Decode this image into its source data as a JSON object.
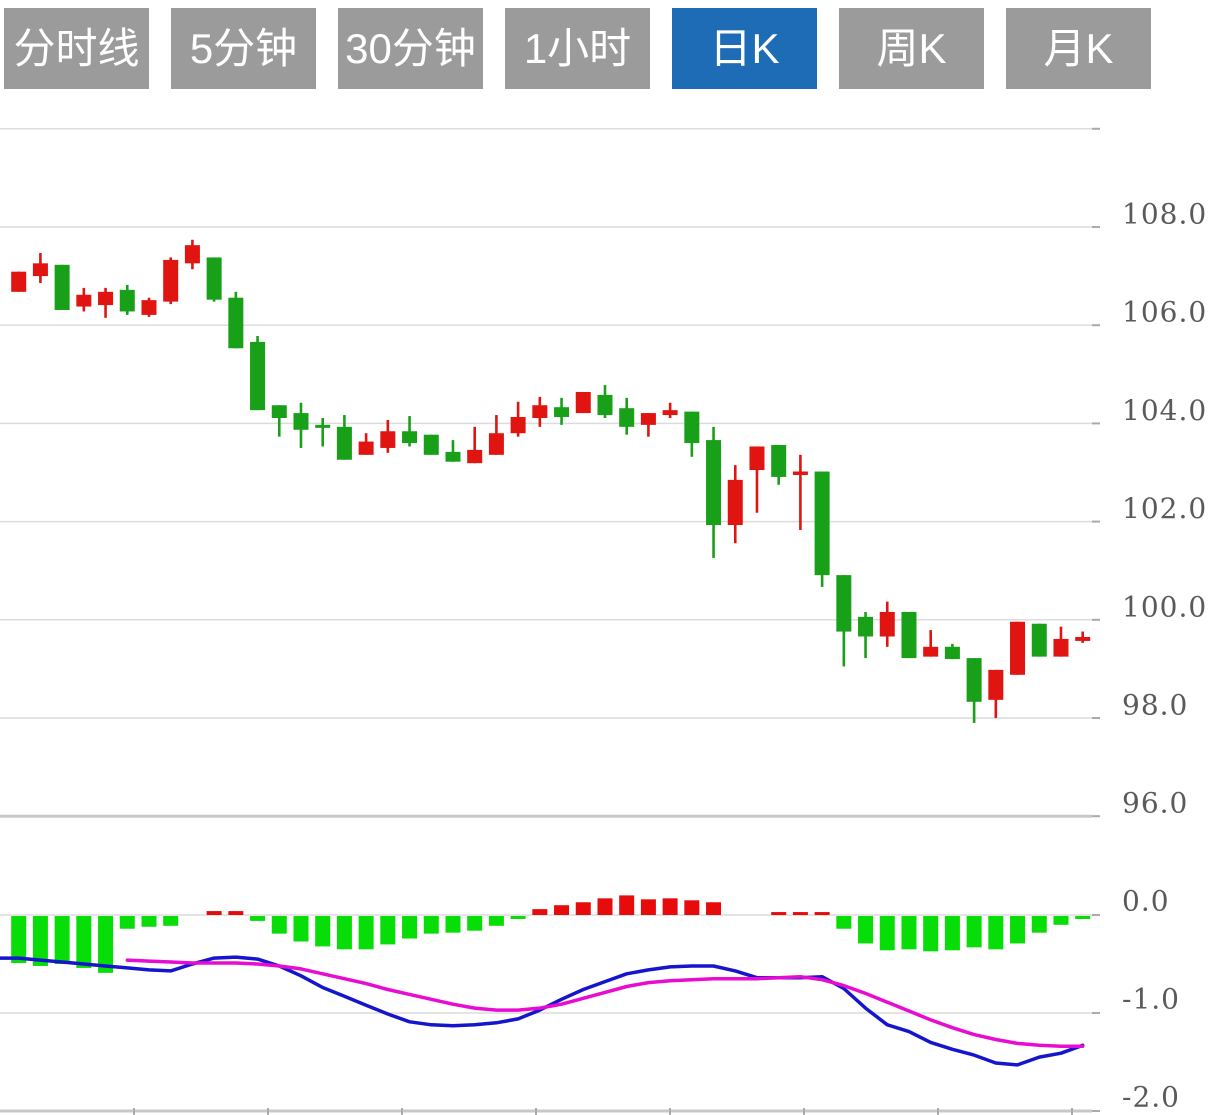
{
  "toolbar": {
    "tabs": [
      {
        "label": "分时线",
        "active": false
      },
      {
        "label": "5分钟",
        "active": false
      },
      {
        "label": "30分钟",
        "active": false
      },
      {
        "label": "1小时",
        "active": false
      },
      {
        "label": "日K",
        "active": true
      },
      {
        "label": "周K",
        "active": false
      },
      {
        "label": "月K",
        "active": false
      }
    ]
  },
  "colors": {
    "up": "#e01410",
    "down": "#18a018",
    "hist_up": "#e60c0c",
    "hist_down": "#07dd07",
    "dif_line": "#1515cd",
    "dea_line": "#e80cd2",
    "grid": "#dcdcdc",
    "grid_heavy": "#c8c8c8",
    "tick": "#aaaaaa",
    "label": "#5a5a5a",
    "tab_bg": "#9b9b9b",
    "tab_active": "#1e6cb5",
    "tab_text": "#ffffff"
  },
  "chart_data": {
    "type": "candlestick+macd",
    "title": "",
    "legend": "none",
    "grid": true,
    "price_axis": {
      "side": "right",
      "gridline_values": [
        110,
        108,
        106,
        104,
        102,
        100,
        98,
        96
      ],
      "heavy_value": 96,
      "labels": [
        {
          "value": 108,
          "text": "108.0"
        },
        {
          "value": 106,
          "text": "106.0"
        },
        {
          "value": 104,
          "text": "104.0"
        },
        {
          "value": 102,
          "text": "102.0"
        },
        {
          "value": 100,
          "text": "100.0"
        },
        {
          "value": 98,
          "text": "98.0"
        },
        {
          "value": 96,
          "text": "96.0"
        }
      ],
      "range": [
        95.8,
        110.2
      ]
    },
    "macd_axis": {
      "side": "right",
      "labels": [
        {
          "value": 0,
          "text": "0.0"
        },
        {
          "value": -1,
          "text": "-1.0"
        },
        {
          "value": -2,
          "text": "-2.0"
        }
      ],
      "heavy_value": -2,
      "range": [
        -2.05,
        0.35
      ]
    },
    "candles_ohlc": [
      [
        106.68,
        107.09,
        106.68,
        107.09
      ],
      [
        107.0,
        107.47,
        106.86,
        107.26
      ],
      [
        107.23,
        107.23,
        106.31,
        106.31
      ],
      [
        106.38,
        106.76,
        106.28,
        106.62
      ],
      [
        106.41,
        106.76,
        106.15,
        106.68
      ],
      [
        106.72,
        106.82,
        106.21,
        106.28
      ],
      [
        106.21,
        106.56,
        106.17,
        106.51
      ],
      [
        106.48,
        107.38,
        106.43,
        107.33
      ],
      [
        107.26,
        107.74,
        107.14,
        107.63
      ],
      [
        107.38,
        107.38,
        106.48,
        106.52
      ],
      [
        106.56,
        106.68,
        105.53,
        105.53
      ],
      [
        105.66,
        105.78,
        104.27,
        104.27
      ],
      [
        104.37,
        104.37,
        103.73,
        104.11
      ],
      [
        104.21,
        104.42,
        103.5,
        103.87
      ],
      [
        103.97,
        104.11,
        103.53,
        103.91
      ],
      [
        103.93,
        104.17,
        103.26,
        103.26
      ],
      [
        103.36,
        103.8,
        103.36,
        103.63
      ],
      [
        103.5,
        104.07,
        103.4,
        103.84
      ],
      [
        103.84,
        104.15,
        103.53,
        103.6
      ],
      [
        103.77,
        103.77,
        103.36,
        103.36
      ],
      [
        103.42,
        103.66,
        103.22,
        103.22
      ],
      [
        103.19,
        103.93,
        103.19,
        103.46
      ],
      [
        103.36,
        104.17,
        103.36,
        103.8
      ],
      [
        103.8,
        104.44,
        103.73,
        104.13
      ],
      [
        104.11,
        104.54,
        103.93,
        104.37
      ],
      [
        104.33,
        104.52,
        103.97,
        104.13
      ],
      [
        104.21,
        104.64,
        104.21,
        104.64
      ],
      [
        104.58,
        104.78,
        104.11,
        104.17
      ],
      [
        104.31,
        104.52,
        103.77,
        103.93
      ],
      [
        103.97,
        104.21,
        103.73,
        104.21
      ],
      [
        104.17,
        104.42,
        104.11,
        104.27
      ],
      [
        104.24,
        104.24,
        103.32,
        103.6
      ],
      [
        103.66,
        103.93,
        101.26,
        101.93
      ],
      [
        101.93,
        103.15,
        101.56,
        102.85
      ],
      [
        103.05,
        103.53,
        102.18,
        103.53
      ],
      [
        103.56,
        103.56,
        102.75,
        102.91
      ],
      [
        102.95,
        103.36,
        101.83,
        103.02
      ],
      [
        103.02,
        103.02,
        100.67,
        100.91
      ],
      [
        100.91,
        100.91,
        99.05,
        99.76
      ],
      [
        100.06,
        100.16,
        99.22,
        99.66
      ],
      [
        99.66,
        100.37,
        99.45,
        100.16
      ],
      [
        100.16,
        100.16,
        99.22,
        99.22
      ],
      [
        99.25,
        99.79,
        99.25,
        99.45
      ],
      [
        99.45,
        99.51,
        99.2,
        99.2
      ],
      [
        99.22,
        99.22,
        97.9,
        98.33
      ],
      [
        98.37,
        98.98,
        98.0,
        98.98
      ],
      [
        98.88,
        99.96,
        98.88,
        99.96
      ],
      [
        99.92,
        99.92,
        99.25,
        99.25
      ],
      [
        99.25,
        99.86,
        99.25,
        99.61
      ],
      [
        99.57,
        99.76,
        99.53,
        99.65
      ]
    ],
    "macd": {
      "histogram": [
        -0.48,
        -0.51,
        -0.49,
        -0.53,
        -0.58,
        -0.13,
        -0.11,
        -0.1,
        0,
        0.04,
        0.04,
        -0.05,
        -0.18,
        -0.26,
        -0.31,
        -0.34,
        -0.34,
        -0.29,
        -0.23,
        -0.18,
        -0.17,
        -0.15,
        -0.1,
        -0.03,
        0.06,
        0.1,
        0.13,
        0.17,
        0.2,
        0.16,
        0.17,
        0.15,
        0.13,
        0,
        0,
        0.03,
        0.03,
        0.03,
        -0.13,
        -0.28,
        -0.35,
        -0.34,
        -0.36,
        -0.35,
        -0.32,
        -0.34,
        -0.28,
        -0.17,
        -0.09,
        -0.03
      ],
      "dif": [
        -0.44,
        -0.46,
        -0.48,
        -0.5,
        -0.52,
        -0.54,
        -0.56,
        -0.57,
        -0.5,
        -0.44,
        -0.43,
        -0.45,
        -0.52,
        -0.62,
        -0.74,
        -0.83,
        -0.92,
        -1.01,
        -1.09,
        -1.12,
        -1.13,
        -1.12,
        -1.1,
        -1.06,
        -0.97,
        -0.86,
        -0.76,
        -0.68,
        -0.6,
        -0.56,
        -0.53,
        -0.52,
        -0.52,
        -0.57,
        -0.64,
        -0.64,
        -0.64,
        -0.63,
        -0.75,
        -0.95,
        -1.12,
        -1.19,
        -1.3,
        -1.37,
        -1.43,
        -1.51,
        -1.53,
        -1.45,
        -1.41,
        -1.33
      ],
      "dea_start_index": 5,
      "dea": [
        -0.46,
        -0.47,
        -0.48,
        -0.49,
        -0.49,
        -0.49,
        -0.5,
        -0.52,
        -0.55,
        -0.6,
        -0.65,
        -0.7,
        -0.76,
        -0.81,
        -0.86,
        -0.91,
        -0.95,
        -0.97,
        -0.97,
        -0.95,
        -0.91,
        -0.85,
        -0.79,
        -0.73,
        -0.69,
        -0.67,
        -0.66,
        -0.65,
        -0.65,
        -0.65,
        -0.64,
        -0.63,
        -0.66,
        -0.72,
        -0.8,
        -0.89,
        -0.98,
        -1.07,
        -1.15,
        -1.22,
        -1.27,
        -1.31,
        -1.33,
        -1.34,
        -1.34
      ]
    }
  }
}
